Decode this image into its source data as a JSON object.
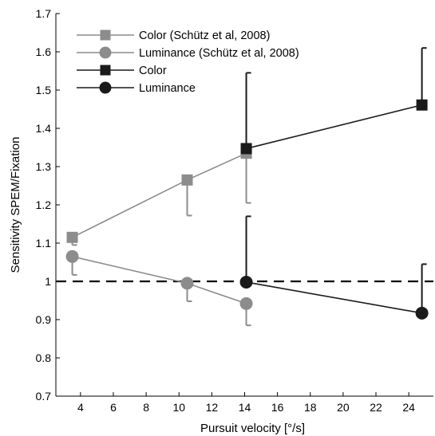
{
  "chart_data": {
    "type": "line",
    "title": "",
    "xlabel": "Pursuit velocity [°/s]",
    "ylabel": "Sensitivity SPEM/Fixation",
    "xlim": [
      2.5,
      25.5
    ],
    "ylim": [
      0.7,
      1.7
    ],
    "xticks": [
      4,
      6,
      8,
      10,
      12,
      14,
      16,
      18,
      20,
      22,
      24
    ],
    "yticks": [
      0.7,
      0.8,
      0.9,
      1,
      1.1,
      1.2,
      1.3,
      1.4,
      1.5,
      1.6,
      1.7
    ],
    "reference_line": {
      "y": 1,
      "style": "dashed",
      "color": "#000000"
    },
    "legend_position": "top-left",
    "series": [
      {
        "name": "Color (Schütz et al, 2008)",
        "marker": "square",
        "color": "#8c8c8c",
        "points": [
          {
            "x": 3.5,
            "y": 1.115,
            "err_dir": "down",
            "err": 1.095
          },
          {
            "x": 10.5,
            "y": 1.265,
            "err_dir": "down",
            "err": 1.172
          },
          {
            "x": 14.1,
            "y": 1.335,
            "err_dir": "down",
            "err": 1.205
          }
        ]
      },
      {
        "name": "Luminance (Schütz et al, 2008)",
        "marker": "circle",
        "color": "#8c8c8c",
        "points": [
          {
            "x": 3.5,
            "y": 1.065,
            "err_dir": "down",
            "err": 1.017
          },
          {
            "x": 10.5,
            "y": 0.995,
            "err_dir": "down",
            "err": 0.948
          },
          {
            "x": 14.1,
            "y": 0.942,
            "err_dir": "down",
            "err": 0.885
          }
        ]
      },
      {
        "name": "Color",
        "marker": "square",
        "color": "#1a1a1a",
        "points": [
          {
            "x": 14.1,
            "y": 1.347,
            "err_dir": "up",
            "err": 1.545
          },
          {
            "x": 24.8,
            "y": 1.461,
            "err_dir": "up",
            "err": 1.61
          }
        ]
      },
      {
        "name": "Luminance",
        "marker": "circle",
        "color": "#1a1a1a",
        "points": [
          {
            "x": 14.1,
            "y": 0.998,
            "err_dir": "up",
            "err": 1.17
          },
          {
            "x": 24.8,
            "y": 0.917,
            "err_dir": "up",
            "err": 1.045
          }
        ]
      }
    ]
  }
}
